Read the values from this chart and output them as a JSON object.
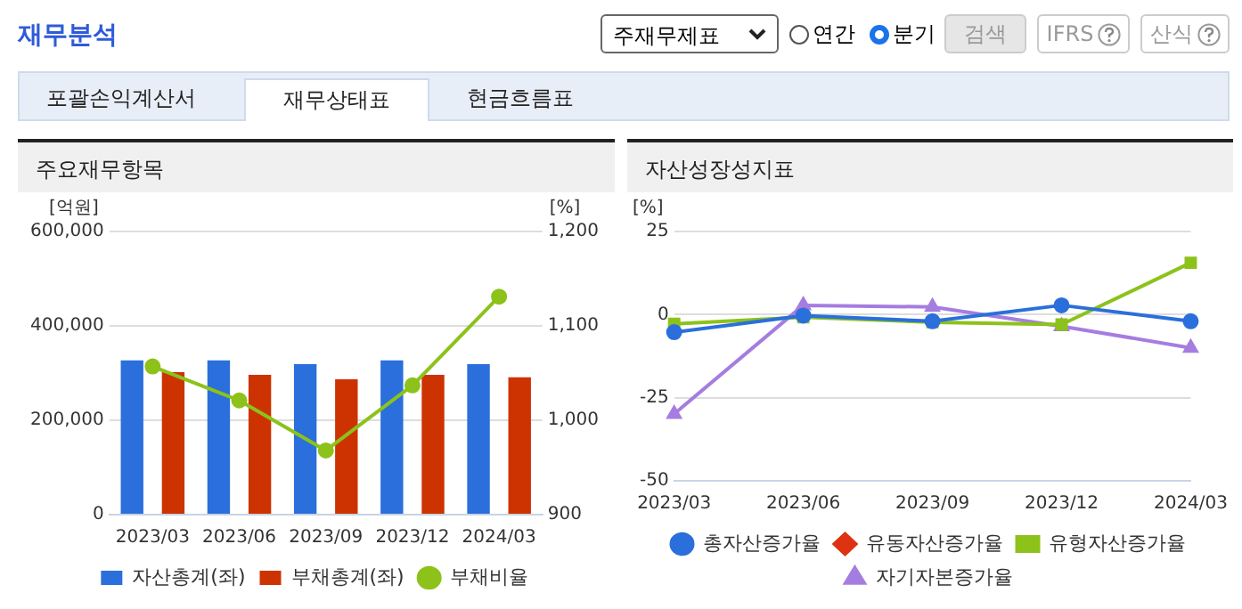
{
  "chart_data": [
    {
      "type": "bar",
      "title": "주요재무항목",
      "ylabel": "[억원]",
      "y2label": "[%]",
      "annotations": [
        "재무분석",
        "주재무제표",
        "연간",
        "분기",
        "검색",
        "IFRS",
        "산식",
        "포괄손익계산서",
        "재무상태표",
        "현금흐름표"
      ],
      "categories": [
        "2023/03",
        "2023/06",
        "2023/09",
        "2023/12",
        "2024/03"
      ],
      "series": [
        {
          "name": "자산총계(좌)",
          "color": "#2a6fdb",
          "values": [
            327000,
            327000,
            319000,
            327000,
            319000
          ]
        },
        {
          "name": "부채총계(좌)",
          "color": "#cc3300",
          "values": [
            302000,
            296000,
            287000,
            296000,
            291000
          ]
        },
        {
          "name": "부채비율",
          "type": "line",
          "axis": "y2",
          "marker": "circle",
          "color": "#8cc21a",
          "values": [
            1057,
            1021,
            968,
            1037,
            1131
          ]
        }
      ],
      "ylim": [
        0,
        600000
      ],
      "yticks": [
        {
          "value": 0,
          "label": "0"
        },
        {
          "value": 200000,
          "label": "200,000"
        },
        {
          "value": 400000,
          "label": "400,000"
        },
        {
          "value": 600000,
          "label": "600,000"
        }
      ],
      "y2lim": [
        900,
        1200
      ],
      "y2ticks": [
        900,
        {
          "value": 1000,
          "label": "1,000"
        },
        {
          "value": 1100,
          "label": "1,100"
        },
        {
          "value": 1200,
          "label": "1,200"
        }
      ],
      "grid": "y",
      "legend": "bottom"
    },
    {
      "type": "line",
      "title": "자산성장성지표",
      "ylabel": "[%]",
      "categories": [
        "2023/03",
        "2023/06",
        "2023/09",
        "2023/12",
        "2024/03"
      ],
      "series": [
        {
          "name": "총자산증가율",
          "color": "#2a6fdb",
          "marker": "circle",
          "values": [
            -5.3,
            -0.3,
            -2,
            2.8,
            -2
          ]
        },
        {
          "name": "유동자산증가율",
          "color": "#dd3311",
          "marker": "diamond",
          "values": [
            null,
            null,
            null,
            null,
            null
          ]
        },
        {
          "name": "유형자산증가율",
          "color": "#8cc21a",
          "marker": "square",
          "values": [
            -2.8,
            -0.8,
            -2.3,
            -3,
            15.6
          ]
        },
        {
          "name": "자기자본증가율",
          "color": "#a57de0",
          "marker": "triangle",
          "values": [
            -29.9,
            2.8,
            2.3,
            -3.5,
            -10
          ]
        }
      ],
      "ylim": [
        -50,
        25
      ],
      "yticks": [
        -50,
        -25,
        0,
        25
      ],
      "grid": "y",
      "legend": "bottom"
    }
  ]
}
